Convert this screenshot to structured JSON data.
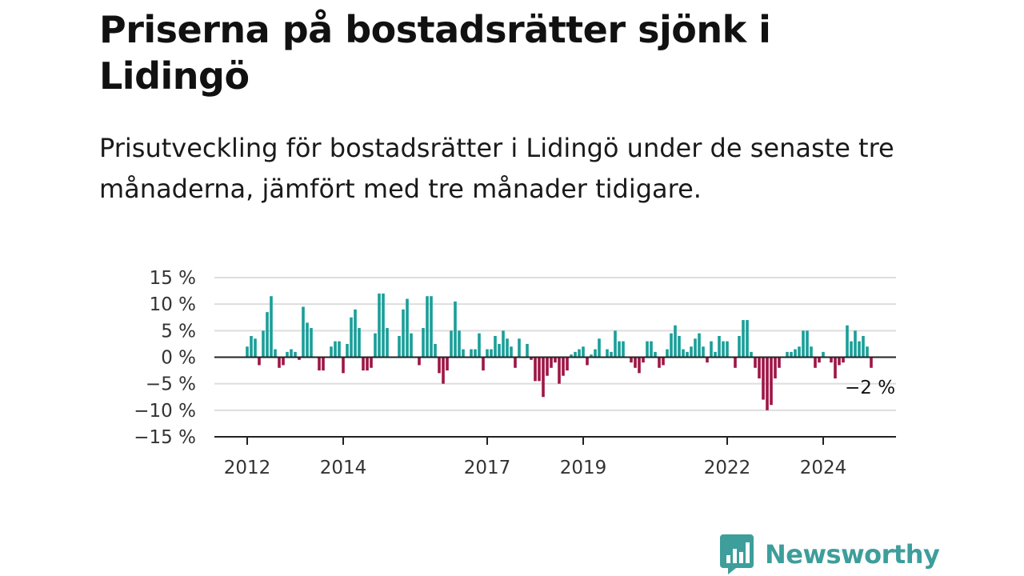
{
  "header": {
    "title": "Priserna på bostadsrätter sjönk i Lidingö",
    "subtitle": "Prisutveckling för bostadsrätter i Lidingö under de senaste tre månaderna, jämfört med tre månader tidigare."
  },
  "brand": {
    "name": "Newsworthy",
    "logo_icon": "bar-chart-speech-bubble-icon",
    "color": "#3d9e9b"
  },
  "colors": {
    "positive": "#1a9e98",
    "negative": "#9e1646",
    "grid": "#dddddd",
    "axis": "#222222"
  },
  "chart_data": {
    "type": "bar",
    "x_start": "2012-01",
    "x_step": "month",
    "ylim": [
      -15,
      15
    ],
    "y_ticks": [
      15,
      10,
      5,
      0,
      -5,
      -10,
      -15
    ],
    "y_tick_labels": [
      "15 %",
      "10 %",
      "5 %",
      "0 %",
      "−5 %",
      "−10 %",
      "−15 %"
    ],
    "x_ticks": [
      {
        "date": "2012-01",
        "label": "2012"
      },
      {
        "date": "2014-01",
        "label": "2014"
      },
      {
        "date": "2017-01",
        "label": "2017"
      },
      {
        "date": "2019-01",
        "label": "2019"
      },
      {
        "date": "2022-01",
        "label": "2022"
      },
      {
        "date": "2024-01",
        "label": "2024"
      }
    ],
    "end_label": "−2 %",
    "grid": true,
    "legend": "none",
    "values": [
      2,
      4,
      3.5,
      -1.5,
      5,
      8.5,
      11.5,
      1.5,
      -2,
      -1.5,
      1,
      1.5,
      1,
      -0.5,
      9.5,
      6.5,
      5.5,
      0,
      -2.5,
      -2.5,
      0,
      2,
      3,
      3,
      -3,
      2.5,
      7.5,
      9,
      5.5,
      -2.5,
      -2.5,
      -2,
      4.5,
      12,
      12,
      5.5,
      0,
      0,
      4,
      9,
      11,
      4.5,
      0,
      -1.5,
      5.5,
      11.5,
      11.5,
      2.5,
      -3,
      -5,
      -2.5,
      5,
      10.5,
      5,
      1.5,
      0,
      1.5,
      1.5,
      4.5,
      -2.5,
      1.5,
      1.5,
      4,
      2.5,
      5,
      3.5,
      2,
      -2,
      3.5,
      0,
      2.5,
      -0.5,
      -4.5,
      -4.5,
      -7.5,
      -3.5,
      -2,
      -1,
      -5,
      -3.5,
      -2.5,
      0.5,
      1,
      1.5,
      2,
      -1.5,
      0.5,
      1.5,
      3.5,
      0,
      1.5,
      1,
      5,
      3,
      3,
      0,
      -1,
      -2,
      -3,
      -1,
      3,
      3,
      1,
      -2,
      -1.5,
      1.5,
      4.5,
      6,
      4,
      1.5,
      1,
      2,
      3.5,
      4.5,
      2,
      -1,
      3,
      1,
      4,
      3,
      3,
      0,
      -2,
      4,
      7,
      7,
      1,
      -2,
      -4,
      -8,
      -10,
      -9,
      -4,
      -2,
      0,
      1,
      1,
      1.5,
      2,
      5,
      5,
      2,
      -2,
      -1,
      1,
      0,
      -1,
      -4,
      -1.5,
      -1,
      6,
      3,
      5,
      3,
      4,
      2,
      -2
    ]
  }
}
